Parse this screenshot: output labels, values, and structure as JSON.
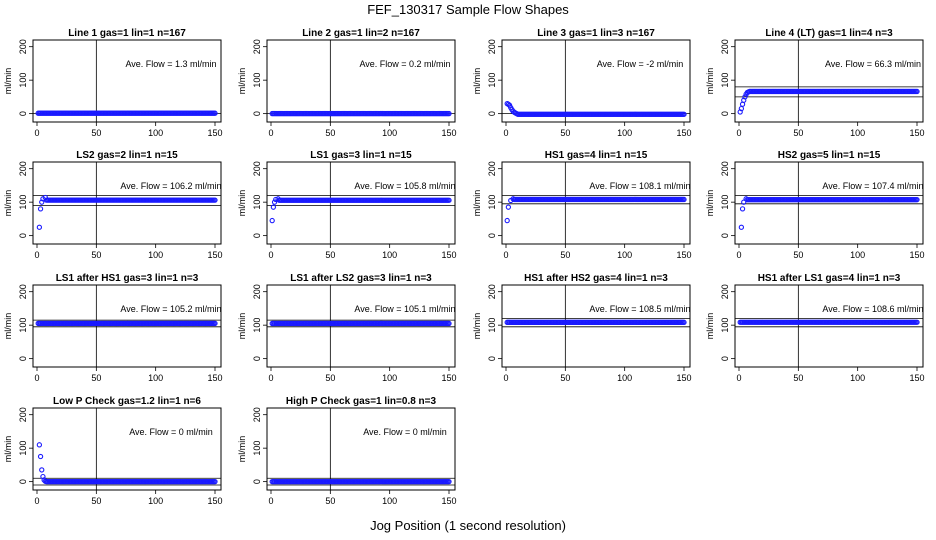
{
  "title": "FEF_130317  Sample Flow Shapes",
  "xlabel": "Jog Position (1 second resolution)",
  "chart_data": [
    {
      "type": "scatter",
      "title": "Line 1 gas=1 lin=1 n=167",
      "ylabel": "ml/min",
      "annotation": "Ave. Flow = 1.3  ml/min",
      "xlim": [
        0,
        150
      ],
      "ylim": [
        0,
        200
      ],
      "xticks": [
        0,
        50,
        100,
        150
      ],
      "yticks": [
        0,
        100,
        200
      ],
      "hlines": [
        0
      ],
      "vline": 50,
      "shape": "flat",
      "level": 1.3
    },
    {
      "type": "scatter",
      "title": "Line 2 gas=1 lin=2 n=167",
      "ylabel": "ml/min",
      "annotation": "Ave. Flow = 0.2  ml/min",
      "xlim": [
        0,
        150
      ],
      "ylim": [
        0,
        200
      ],
      "xticks": [
        0,
        50,
        100,
        150
      ],
      "yticks": [
        0,
        100,
        200
      ],
      "hlines": [
        0
      ],
      "vline": 50,
      "shape": "flat",
      "level": 0.2
    },
    {
      "type": "scatter",
      "title": "Line 3 gas=1 lin=3 n=167",
      "ylabel": "ml/min",
      "annotation": "Ave. Flow = -2  ml/min",
      "xlim": [
        0,
        150
      ],
      "ylim": [
        0,
        200
      ],
      "xticks": [
        0,
        50,
        100,
        150
      ],
      "yticks": [
        0,
        100,
        200
      ],
      "hlines": [
        0
      ],
      "vline": 50,
      "shape": "decay",
      "level": -2,
      "start": [
        [
          1,
          30
        ],
        [
          2,
          28
        ],
        [
          3,
          25
        ],
        [
          4,
          18
        ],
        [
          5,
          12
        ],
        [
          6,
          7
        ],
        [
          7,
          4
        ],
        [
          8,
          2
        ],
        [
          9,
          0
        ]
      ]
    },
    {
      "type": "scatter",
      "title": "Line 4 (LT) gas=1 lin=4 n=3",
      "ylabel": "ml/min",
      "annotation": "Ave. Flow = 66.3  ml/min",
      "xlim": [
        0,
        150
      ],
      "ylim": [
        0,
        200
      ],
      "xticks": [
        0,
        50,
        100,
        150
      ],
      "yticks": [
        0,
        100,
        200
      ],
      "hlines": [
        50,
        80
      ],
      "vline": 50,
      "shape": "rise",
      "level": 66.3,
      "start": [
        [
          1,
          5
        ],
        [
          2,
          15
        ],
        [
          3,
          28
        ],
        [
          4,
          40
        ],
        [
          5,
          50
        ],
        [
          6,
          58
        ],
        [
          7,
          63
        ],
        [
          8,
          65
        ]
      ]
    },
    {
      "type": "scatter",
      "title": "LS2 gas=2 lin=1 n=15",
      "ylabel": "ml/min",
      "annotation": "Ave. Flow = 106.2  ml/min",
      "xlim": [
        0,
        150
      ],
      "ylim": [
        0,
        200
      ],
      "xticks": [
        0,
        50,
        100,
        150
      ],
      "yticks": [
        0,
        100,
        200
      ],
      "hlines": [
        90,
        120
      ],
      "vline": 50,
      "shape": "rise",
      "level": 106.2,
      "start": [
        [
          2,
          25
        ],
        [
          3,
          80
        ],
        [
          4,
          100
        ],
        [
          5,
          110
        ],
        [
          7,
          114
        ]
      ]
    },
    {
      "type": "scatter",
      "title": "LS1 gas=3 lin=1 n=15",
      "ylabel": "ml/min",
      "annotation": "Ave. Flow = 105.8  ml/min",
      "xlim": [
        0,
        150
      ],
      "ylim": [
        0,
        200
      ],
      "xticks": [
        0,
        50,
        100,
        150
      ],
      "yticks": [
        0,
        100,
        200
      ],
      "hlines": [
        90,
        120
      ],
      "vline": 50,
      "shape": "rise",
      "level": 105.8,
      "start": [
        [
          1,
          45
        ],
        [
          2,
          85
        ],
        [
          3,
          100
        ],
        [
          4,
          108
        ],
        [
          6,
          110
        ]
      ]
    },
    {
      "type": "scatter",
      "title": "HS1 gas=4 lin=1 n=15",
      "ylabel": "ml/min",
      "annotation": "Ave. Flow = 108.1  ml/min",
      "xlim": [
        0,
        150
      ],
      "ylim": [
        0,
        200
      ],
      "xticks": [
        0,
        50,
        100,
        150
      ],
      "yticks": [
        0,
        100,
        200
      ],
      "hlines": [
        95,
        120
      ],
      "vline": 50,
      "shape": "rise",
      "level": 108.1,
      "start": [
        [
          1,
          45
        ],
        [
          2,
          85
        ],
        [
          4,
          105
        ],
        [
          6,
          110
        ]
      ]
    },
    {
      "type": "scatter",
      "title": "HS2 gas=5 lin=1 n=15",
      "ylabel": "ml/min",
      "annotation": "Ave. Flow = 107.4  ml/min",
      "xlim": [
        0,
        150
      ],
      "ylim": [
        0,
        200
      ],
      "xticks": [
        0,
        50,
        100,
        150
      ],
      "yticks": [
        0,
        100,
        200
      ],
      "hlines": [
        95,
        120
      ],
      "vline": 50,
      "shape": "rise",
      "level": 107.4,
      "start": [
        [
          2,
          25
        ],
        [
          3,
          80
        ],
        [
          4,
          100
        ],
        [
          6,
          110
        ]
      ]
    },
    {
      "type": "scatter",
      "title": "LS1 after HS1 gas=3 lin=1 n=3",
      "ylabel": "ml/min",
      "annotation": "Ave. Flow = 105.2  ml/min",
      "xlim": [
        0,
        150
      ],
      "ylim": [
        0,
        200
      ],
      "xticks": [
        0,
        50,
        100,
        150
      ],
      "yticks": [
        0,
        100,
        200
      ],
      "hlines": [
        95,
        115
      ],
      "vline": 50,
      "shape": "flat",
      "level": 105.2
    },
    {
      "type": "scatter",
      "title": "LS1 after LS2 gas=3 lin=1 n=3",
      "ylabel": "ml/min",
      "annotation": "Ave. Flow = 105.1  ml/min",
      "xlim": [
        0,
        150
      ],
      "ylim": [
        0,
        200
      ],
      "xticks": [
        0,
        50,
        100,
        150
      ],
      "yticks": [
        0,
        100,
        200
      ],
      "hlines": [
        95,
        115
      ],
      "vline": 50,
      "shape": "flat",
      "level": 105.1
    },
    {
      "type": "scatter",
      "title": "HS1 after HS2 gas=4 lin=1 n=3",
      "ylabel": "ml/min",
      "annotation": "Ave. Flow = 108.5  ml/min",
      "xlim": [
        0,
        150
      ],
      "ylim": [
        0,
        200
      ],
      "xticks": [
        0,
        50,
        100,
        150
      ],
      "yticks": [
        0,
        100,
        200
      ],
      "hlines": [
        95,
        120
      ],
      "vline": 50,
      "shape": "flat",
      "level": 108.5
    },
    {
      "type": "scatter",
      "title": "HS1 after LS1 gas=4 lin=1 n=3",
      "ylabel": "ml/min",
      "annotation": "Ave. Flow = 108.6  ml/min",
      "xlim": [
        0,
        150
      ],
      "ylim": [
        0,
        200
      ],
      "xticks": [
        0,
        50,
        100,
        150
      ],
      "yticks": [
        0,
        100,
        200
      ],
      "hlines": [
        95,
        120
      ],
      "vline": 50,
      "shape": "flat",
      "level": 108.6
    },
    {
      "type": "scatter",
      "title": "Low P Check gas=1.2 lin=1 n=6",
      "ylabel": "ml/min",
      "annotation": "Ave. Flow = 0  ml/min",
      "xlim": [
        0,
        150
      ],
      "ylim": [
        0,
        200
      ],
      "xticks": [
        0,
        50,
        100,
        150
      ],
      "yticks": [
        0,
        100,
        200
      ],
      "hlines": [
        -10,
        10
      ],
      "vline": 50,
      "shape": "decay",
      "level": 0,
      "start": [
        [
          2,
          110
        ],
        [
          3,
          75
        ],
        [
          4,
          35
        ],
        [
          5,
          15
        ],
        [
          6,
          5
        ],
        [
          7,
          1
        ]
      ]
    },
    {
      "type": "scatter",
      "title": "High P Check gas=1 lin=0.8 n=3",
      "ylabel": "ml/min",
      "annotation": "Ave. Flow = 0  ml/min",
      "xlim": [
        0,
        150
      ],
      "ylim": [
        0,
        200
      ],
      "xticks": [
        0,
        50,
        100,
        150
      ],
      "yticks": [
        0,
        100,
        200
      ],
      "hlines": [
        -10,
        10
      ],
      "vline": 50,
      "shape": "flat",
      "level": 0
    }
  ]
}
